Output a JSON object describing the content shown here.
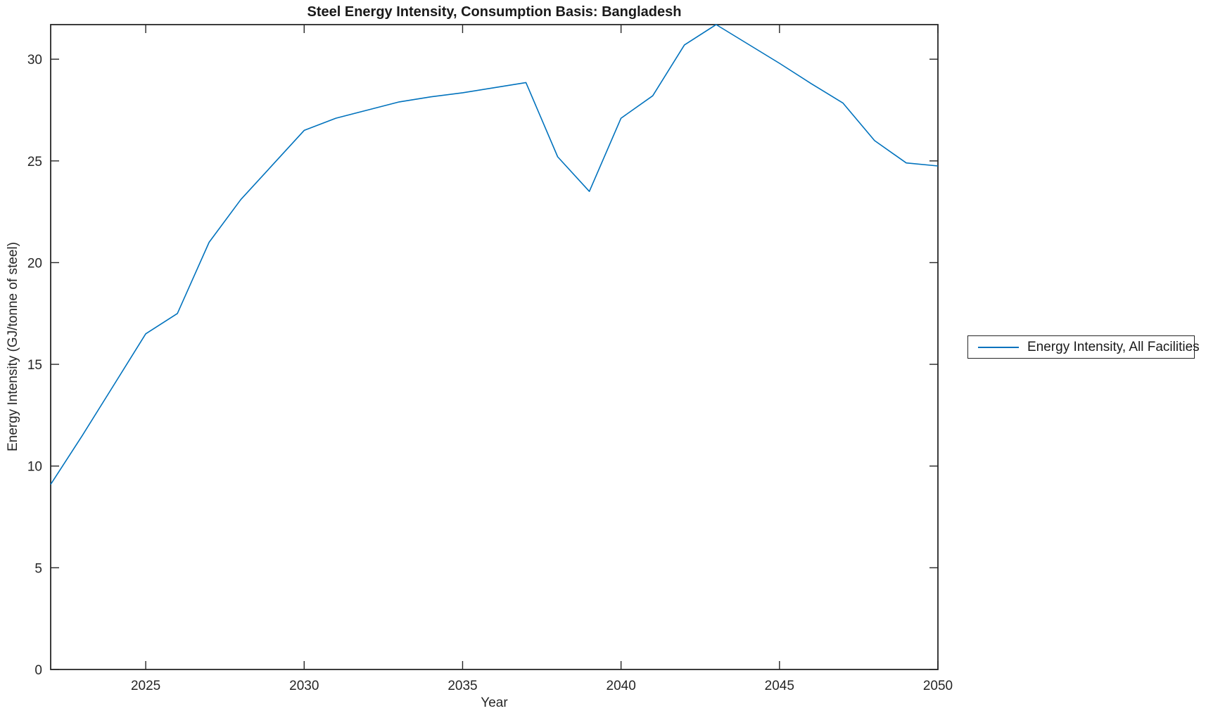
{
  "chart_data": {
    "type": "line",
    "title": "Steel Energy Intensity, Consumption Basis: Bangladesh",
    "xlabel": "Year",
    "ylabel": "Energy Intensity (GJ/tonne of steel)",
    "x": [
      2022,
      2023,
      2024,
      2025,
      2026,
      2027,
      2028,
      2029,
      2030,
      2031,
      2032,
      2033,
      2034,
      2035,
      2036,
      2037,
      2038,
      2039,
      2040,
      2041,
      2042,
      2043,
      2044,
      2045,
      2046,
      2047,
      2048,
      2049,
      2050
    ],
    "series": [
      {
        "name": "Energy Intensity, All Facilities",
        "color": "#0072BD",
        "values": [
          9.1,
          11.5,
          14.0,
          16.5,
          17.5,
          21.0,
          23.1,
          24.8,
          26.5,
          27.1,
          27.5,
          27.9,
          28.15,
          28.35,
          28.6,
          28.85,
          25.2,
          23.5,
          27.1,
          28.2,
          30.7,
          31.7,
          30.75,
          29.8,
          28.8,
          27.85,
          26.0,
          24.9,
          24.75
        ]
      }
    ],
    "xlim": [
      2022,
      2050
    ],
    "ylim": [
      0,
      31.7
    ],
    "x_ticks": [
      2025,
      2030,
      2035,
      2040,
      2045,
      2050
    ],
    "y_ticks": [
      0,
      5,
      10,
      15,
      20,
      25,
      30
    ],
    "grid": false,
    "legend_position": "right-outside",
    "axis_color": "#262626",
    "tick_label_color": "#262626",
    "background": "#ffffff"
  },
  "legend": {
    "label": "Energy Intensity, All Facilities"
  }
}
